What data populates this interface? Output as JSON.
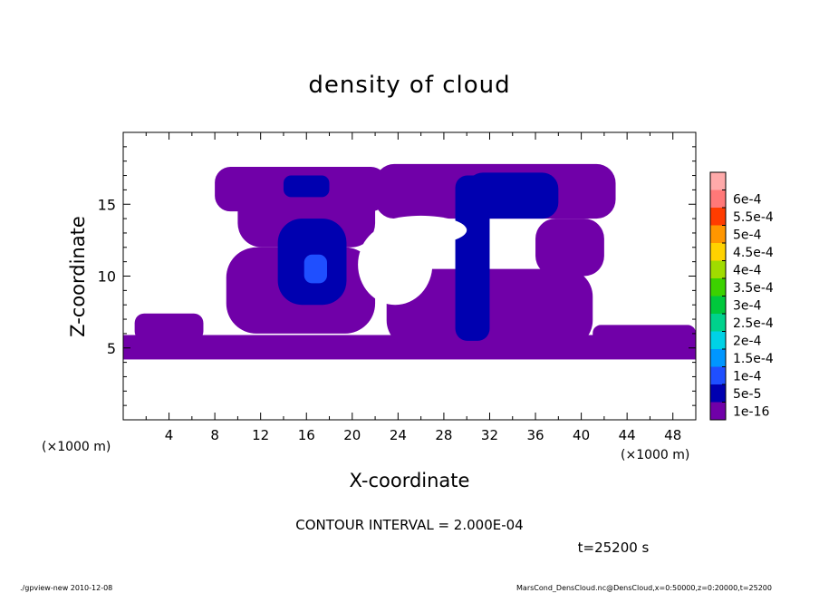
{
  "chart_data": {
    "type": "heatmap",
    "title": "density of cloud",
    "xlabel": "X-coordinate",
    "ylabel": "Z-coordinate",
    "x_unit_label": "(×1000 m)",
    "y_unit_label": "(×1000 m)",
    "xlim": [
      0,
      50
    ],
    "ylim": [
      0,
      20
    ],
    "x_ticks": [
      4,
      8,
      12,
      16,
      20,
      24,
      28,
      32,
      36,
      40,
      44,
      48
    ],
    "y_ticks": [
      5,
      10,
      15
    ],
    "contour_interval_text": "CONTOUR INTERVAL = 2.000E-04",
    "time_text": "t=25200 s",
    "colorbar": {
      "levels": [
        "1e-16",
        "5e-5",
        "1e-4",
        "1.5e-4",
        "2e-4",
        "2.5e-4",
        "3e-4",
        "3.5e-4",
        "4e-4",
        "4.5e-4",
        "5e-4",
        "5.5e-4",
        "6e-4"
      ],
      "colors": [
        "#7000a8",
        "#0000b0",
        "#1f4fff",
        "#0096ff",
        "#00d2e6",
        "#00d28c",
        "#00c83c",
        "#3cd200",
        "#a0dc00",
        "#ffd200",
        "#ff9600",
        "#ff3c00",
        "#ff7878",
        "#ffaaaa"
      ]
    },
    "regions": [
      {
        "level": "1e-16",
        "x_range": [
          0,
          50
        ],
        "z_range": [
          4.2,
          5.9
        ],
        "description": "continuous low-level layer"
      },
      {
        "level": "1e-16",
        "x_range": [
          1,
          7
        ],
        "z_range": [
          5.5,
          7.4
        ]
      },
      {
        "level": "1e-16",
        "x_range": [
          9,
          22
        ],
        "z_range": [
          6,
          12
        ]
      },
      {
        "level": "1e-16",
        "x_range": [
          10,
          22
        ],
        "z_range": [
          12,
          16.8
        ]
      },
      {
        "level": "1e-16",
        "x_range": [
          8,
          23
        ],
        "z_range": [
          14.5,
          17.6
        ]
      },
      {
        "level": "1e-16",
        "x_range": [
          22,
          43
        ],
        "z_range": [
          14,
          17.8
        ]
      },
      {
        "level": "1e-16",
        "x_range": [
          23,
          41
        ],
        "z_range": [
          5,
          10.5
        ]
      },
      {
        "level": "1e-16",
        "x_range": [
          36,
          42
        ],
        "z_range": [
          10,
          14
        ]
      },
      {
        "level": "1e-16",
        "x_range": [
          41,
          50
        ],
        "z_range": [
          5,
          6.6
        ]
      },
      {
        "level": "5e-5",
        "x_range": [
          13.5,
          19.5
        ],
        "z_range": [
          8,
          14
        ],
        "description": "blue core"
      },
      {
        "level": "5e-5",
        "x_range": [
          14,
          18
        ],
        "z_range": [
          15.5,
          17
        ]
      },
      {
        "level": "5e-5",
        "x_range": [
          29,
          32
        ],
        "z_range": [
          5.5,
          17
        ]
      },
      {
        "level": "5e-5",
        "x_range": [
          30,
          38
        ],
        "z_range": [
          14,
          17.2
        ]
      },
      {
        "level": "1e-4",
        "x_range": [
          15.8,
          17.8
        ],
        "z_range": [
          9.5,
          11.5
        ]
      }
    ]
  },
  "footer": {
    "left_text": "./gpview-new   2010-12-08",
    "right_text": "MarsCond_DensCloud.nc@DensCloud,x=0:50000,z=0:20000,t=25200"
  }
}
